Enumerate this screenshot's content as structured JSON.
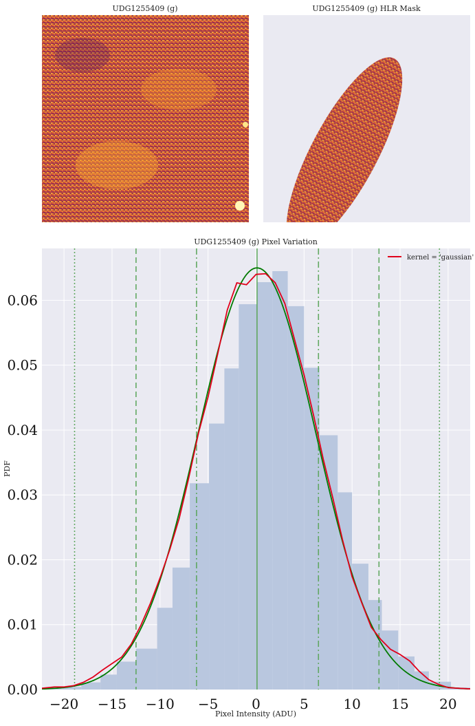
{
  "panels": {
    "image_title": "UDG1255409 (g)",
    "mask_title": "UDG1255409 (g) HLR Mask"
  },
  "colors": {
    "axes_bg": "#eaeaf2",
    "hist": "#b9c7df",
    "kde": "#e0001b",
    "gaussian": "#007a00",
    "vlines": "#5aa55a"
  },
  "chart_data": {
    "type": "bar",
    "title": "UDG1255409 (g) Pixel Variation",
    "xlabel": "Pixel Intensity (ADU)",
    "ylabel": "PDF",
    "xlim": [
      -22.3,
      22.3
    ],
    "ylim": [
      0,
      0.068
    ],
    "xticks": [
      -20,
      -15,
      -10,
      -5,
      0,
      5,
      10,
      15,
      20
    ],
    "xtick_labels": [
      "−20",
      "−15",
      "−10",
      "−5",
      "0",
      "5",
      "10",
      "15",
      "20"
    ],
    "yticks": [
      0,
      0.01,
      0.02,
      0.03,
      0.04,
      0.05,
      0.06
    ],
    "ytick_labels": [
      "0.00",
      "0.01",
      "0.02",
      "0.03",
      "0.04",
      "0.05",
      "0.06"
    ],
    "grid": true,
    "legend_position": "top-right",
    "legend": [
      "kernel = 'gaussian'"
    ],
    "histogram": {
      "bin_edges": [
        -22.3,
        -20.2,
        -18.2,
        -16.2,
        -14.5,
        -12.5,
        -10.3,
        -8.7,
        -6.9,
        -4.9,
        -3.3,
        -1.8,
        0.1,
        1.7,
        3.3,
        5.0,
        6.6,
        8.5,
        10.0,
        11.7,
        13.1,
        14.8,
        16.5,
        18.0,
        20.3,
        22.3
      ],
      "values": [
        0.0003,
        0.0004,
        0.0011,
        0.0023,
        0.0043,
        0.0063,
        0.0126,
        0.0188,
        0.0318,
        0.041,
        0.0495,
        0.0594,
        0.0628,
        0.0645,
        0.0591,
        0.0496,
        0.0392,
        0.0304,
        0.0194,
        0.0138,
        0.0091,
        0.0051,
        0.0028,
        0.0012,
        0.0003
      ]
    },
    "kde_curve": {
      "name": "kernel = 'gaussian'",
      "x": [
        -22.3,
        -21.0,
        -20.0,
        -19.0,
        -18.0,
        -17.0,
        -16.0,
        -15.0,
        -14.0,
        -13.0,
        -12.0,
        -11.0,
        -10.0,
        -9.0,
        -8.0,
        -7.0,
        -6.0,
        -5.0,
        -4.0,
        -3.0,
        -2.0,
        -1.0,
        0.0,
        1.0,
        2.0,
        3.0,
        4.0,
        5.0,
        6.0,
        7.0,
        8.0,
        9.0,
        10.0,
        11.0,
        12.0,
        13.0,
        14.0,
        15.0,
        16.0,
        17.0,
        18.0,
        19.0,
        20.0,
        21.0,
        22.3
      ],
      "y": [
        0.0002,
        0.0004,
        0.0004,
        0.0006,
        0.0011,
        0.0019,
        0.003,
        0.004,
        0.005,
        0.007,
        0.0099,
        0.0133,
        0.0172,
        0.0215,
        0.0264,
        0.0327,
        0.0395,
        0.0451,
        0.0517,
        0.0585,
        0.0627,
        0.0624,
        0.064,
        0.0641,
        0.0627,
        0.0595,
        0.054,
        0.0485,
        0.0422,
        0.0355,
        0.0295,
        0.0231,
        0.0174,
        0.0134,
        0.0096,
        0.0077,
        0.0062,
        0.0054,
        0.0044,
        0.0028,
        0.0015,
        0.0008,
        0.0003,
        0.0002,
        0.0001
      ]
    },
    "gaussian_fit": {
      "mean": 0.1,
      "sigma": 6.15,
      "peak": 0.065
    },
    "vertical_lines": [
      {
        "x": 0.1,
        "style": "solid"
      },
      {
        "x": -6.2,
        "style": "dashdot"
      },
      {
        "x": 6.5,
        "style": "dashdot"
      },
      {
        "x": -12.5,
        "style": "dashed"
      },
      {
        "x": 12.8,
        "style": "dashed"
      },
      {
        "x": -18.9,
        "style": "dotted"
      },
      {
        "x": 19.1,
        "style": "dotted"
      }
    ]
  }
}
